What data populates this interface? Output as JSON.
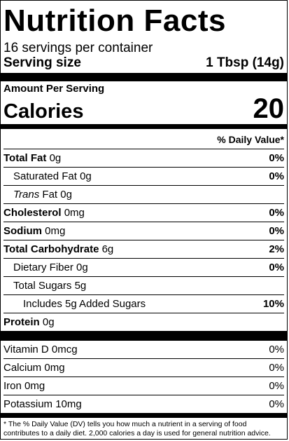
{
  "title": "Nutrition Facts",
  "servings_per_container": "16 servings per container",
  "serving_size": {
    "label": "Serving size",
    "value": "1 Tbsp (14g)"
  },
  "amount_per_serving": "Amount Per Serving",
  "calories": {
    "label": "Calories",
    "value": "20"
  },
  "dv_header": "% Daily Value*",
  "nutrients": [
    {
      "name": "Total Fat",
      "amount": "0g",
      "dv": "0%"
    },
    {
      "name": "Saturated Fat",
      "amount": "0g",
      "dv": "0%"
    },
    {
      "name_italic": "Trans",
      "name": "Fat",
      "amount": "0g",
      "dv": ""
    },
    {
      "name": "Cholesterol",
      "amount": "0mg",
      "dv": "0%"
    },
    {
      "name": "Sodium",
      "amount": "0mg",
      "dv": "0%"
    },
    {
      "name": "Total Carbohydrate",
      "amount": "6g",
      "dv": "2%"
    },
    {
      "name": "Dietary Fiber",
      "amount": "0g",
      "dv": "0%"
    },
    {
      "name": "Total Sugars",
      "amount": "5g",
      "dv": ""
    },
    {
      "name": "Includes 5g Added Sugars",
      "amount": "",
      "dv": "10%"
    },
    {
      "name": "Protein",
      "amount": "0g",
      "dv": ""
    }
  ],
  "vitamins": [
    {
      "name": "Vitamin D",
      "amount": "0mcg",
      "dv": "0%"
    },
    {
      "name": "Calcium",
      "amount": "0mg",
      "dv": "0%"
    },
    {
      "name": "Iron",
      "amount": "0mg",
      "dv": "0%"
    },
    {
      "name": "Potassium",
      "amount": "10mg",
      "dv": "0%"
    }
  ],
  "footnote": "* The % Daily Value (DV) tells you how much a nutrient in a serving of food contributes to a daily diet. 2,000 calories a day is used for general nutrition advice."
}
